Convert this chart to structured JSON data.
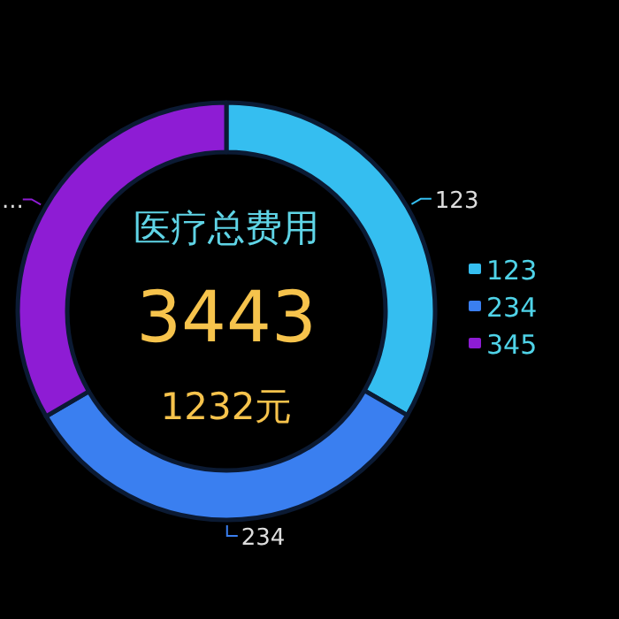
{
  "chart_data": {
    "type": "donut",
    "title": "医疗总费用",
    "annotations": [
      "3443",
      "1232元",
      {
        "text": "...",
        "x": "345"
      }
    ],
    "categories": [
      "123",
      "234",
      "345"
    ],
    "values": [
      33.3,
      33.3,
      33.4
    ],
    "colors": [
      "#35bef0",
      "#3a7ff0",
      "#8e1cd4"
    ],
    "legend": "right"
  }
}
